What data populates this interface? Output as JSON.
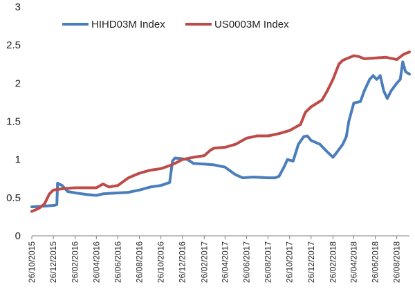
{
  "chart_data": {
    "type": "line",
    "title": "",
    "xlabel": "",
    "ylabel": "",
    "ylim": [
      0,
      3
    ],
    "y_ticks": [
      "0",
      "0.5",
      "1",
      "1.5",
      "2",
      "2.5",
      "3"
    ],
    "x_ticks": [
      "26/10/2015",
      "26/12/2015",
      "26/02/2016",
      "26/04/2016",
      "26/06/2016",
      "26/08/2016",
      "26/10/2016",
      "26/12/2016",
      "26/02/2017",
      "26/04/2017",
      "26/06/2017",
      "26/08/2017",
      "26/10/2017",
      "26/12/2017",
      "26/02/2018",
      "26/04/2018",
      "26/06/2018",
      "26/08/2018"
    ],
    "x_range": [
      "2015-10-26",
      "2018-10-01"
    ],
    "grid": false,
    "legend_position": "top",
    "series": [
      {
        "name": "HIHD03M Index",
        "color": "#4a7ebb",
        "points": [
          [
            "2015-10-26",
            0.38
          ],
          [
            "2015-12-01",
            0.39
          ],
          [
            "2015-12-30",
            0.4
          ],
          [
            "2016-01-05",
            0.41
          ],
          [
            "2016-01-07",
            0.69
          ],
          [
            "2016-01-20",
            0.66
          ],
          [
            "2016-02-05",
            0.58
          ],
          [
            "2016-03-01",
            0.56
          ],
          [
            "2016-04-01",
            0.54
          ],
          [
            "2016-04-26",
            0.53
          ],
          [
            "2016-05-15",
            0.55
          ],
          [
            "2016-06-15",
            0.56
          ],
          [
            "2016-07-26",
            0.57
          ],
          [
            "2016-08-26",
            0.6
          ],
          [
            "2016-09-26",
            0.64
          ],
          [
            "2016-10-26",
            0.66
          ],
          [
            "2016-11-20",
            0.7
          ],
          [
            "2016-11-28",
            0.98
          ],
          [
            "2016-12-05",
            1.02
          ],
          [
            "2016-12-26",
            1.01
          ],
          [
            "2017-01-10",
            1.0
          ],
          [
            "2017-01-26",
            0.95
          ],
          [
            "2017-02-26",
            0.94
          ],
          [
            "2017-03-26",
            0.93
          ],
          [
            "2017-04-26",
            0.9
          ],
          [
            "2017-05-26",
            0.8
          ],
          [
            "2017-06-15",
            0.76
          ],
          [
            "2017-07-15",
            0.77
          ],
          [
            "2017-08-26",
            0.76
          ],
          [
            "2017-09-15",
            0.76
          ],
          [
            "2017-09-26",
            0.78
          ],
          [
            "2017-10-10",
            0.9
          ],
          [
            "2017-10-20",
            1.0
          ],
          [
            "2017-11-05",
            0.98
          ],
          [
            "2017-11-20",
            1.2
          ],
          [
            "2017-12-05",
            1.3
          ],
          [
            "2017-12-15",
            1.31
          ],
          [
            "2017-12-26",
            1.25
          ],
          [
            "2018-01-20",
            1.2
          ],
          [
            "2018-02-10",
            1.1
          ],
          [
            "2018-02-26",
            1.03
          ],
          [
            "2018-03-10",
            1.1
          ],
          [
            "2018-03-26",
            1.2
          ],
          [
            "2018-04-05",
            1.3
          ],
          [
            "2018-04-12",
            1.5
          ],
          [
            "2018-04-26",
            1.74
          ],
          [
            "2018-05-15",
            1.76
          ],
          [
            "2018-05-26",
            1.9
          ],
          [
            "2018-06-10",
            2.05
          ],
          [
            "2018-06-20",
            2.1
          ],
          [
            "2018-06-30",
            2.05
          ],
          [
            "2018-07-10",
            2.1
          ],
          [
            "2018-07-20",
            1.9
          ],
          [
            "2018-07-30",
            1.8
          ],
          [
            "2018-08-10",
            1.9
          ],
          [
            "2018-08-26",
            2.0
          ],
          [
            "2018-09-05",
            2.05
          ],
          [
            "2018-09-12",
            2.28
          ],
          [
            "2018-09-20",
            2.15
          ],
          [
            "2018-10-01",
            2.12
          ]
        ]
      },
      {
        "name": "US0003M Index",
        "color": "#be4b48",
        "points": [
          [
            "2015-10-26",
            0.32
          ],
          [
            "2015-11-15",
            0.36
          ],
          [
            "2015-12-01",
            0.42
          ],
          [
            "2015-12-15",
            0.55
          ],
          [
            "2015-12-26",
            0.6
          ],
          [
            "2016-01-26",
            0.62
          ],
          [
            "2016-02-26",
            0.63
          ],
          [
            "2016-03-26",
            0.63
          ],
          [
            "2016-04-26",
            0.63
          ],
          [
            "2016-05-15",
            0.68
          ],
          [
            "2016-06-01",
            0.64
          ],
          [
            "2016-06-26",
            0.66
          ],
          [
            "2016-07-26",
            0.76
          ],
          [
            "2016-08-26",
            0.82
          ],
          [
            "2016-09-26",
            0.86
          ],
          [
            "2016-10-26",
            0.88
          ],
          [
            "2016-11-26",
            0.93
          ],
          [
            "2016-12-26",
            1.0
          ],
          [
            "2017-01-26",
            1.03
          ],
          [
            "2017-02-26",
            1.05
          ],
          [
            "2017-03-15",
            1.12
          ],
          [
            "2017-03-26",
            1.15
          ],
          [
            "2017-04-26",
            1.16
          ],
          [
            "2017-05-26",
            1.2
          ],
          [
            "2017-06-26",
            1.28
          ],
          [
            "2017-07-26",
            1.31
          ],
          [
            "2017-08-26",
            1.31
          ],
          [
            "2017-09-26",
            1.34
          ],
          [
            "2017-10-26",
            1.38
          ],
          [
            "2017-11-26",
            1.46
          ],
          [
            "2017-12-10",
            1.62
          ],
          [
            "2017-12-26",
            1.69
          ],
          [
            "2018-01-26",
            1.78
          ],
          [
            "2018-02-10",
            1.9
          ],
          [
            "2018-02-26",
            2.05
          ],
          [
            "2018-03-15",
            2.25
          ],
          [
            "2018-03-26",
            2.3
          ],
          [
            "2018-04-26",
            2.36
          ],
          [
            "2018-05-10",
            2.35
          ],
          [
            "2018-05-26",
            2.32
          ],
          [
            "2018-06-26",
            2.33
          ],
          [
            "2018-07-26",
            2.34
          ],
          [
            "2018-08-26",
            2.31
          ],
          [
            "2018-09-15",
            2.38
          ],
          [
            "2018-10-01",
            2.41
          ]
        ]
      }
    ]
  }
}
